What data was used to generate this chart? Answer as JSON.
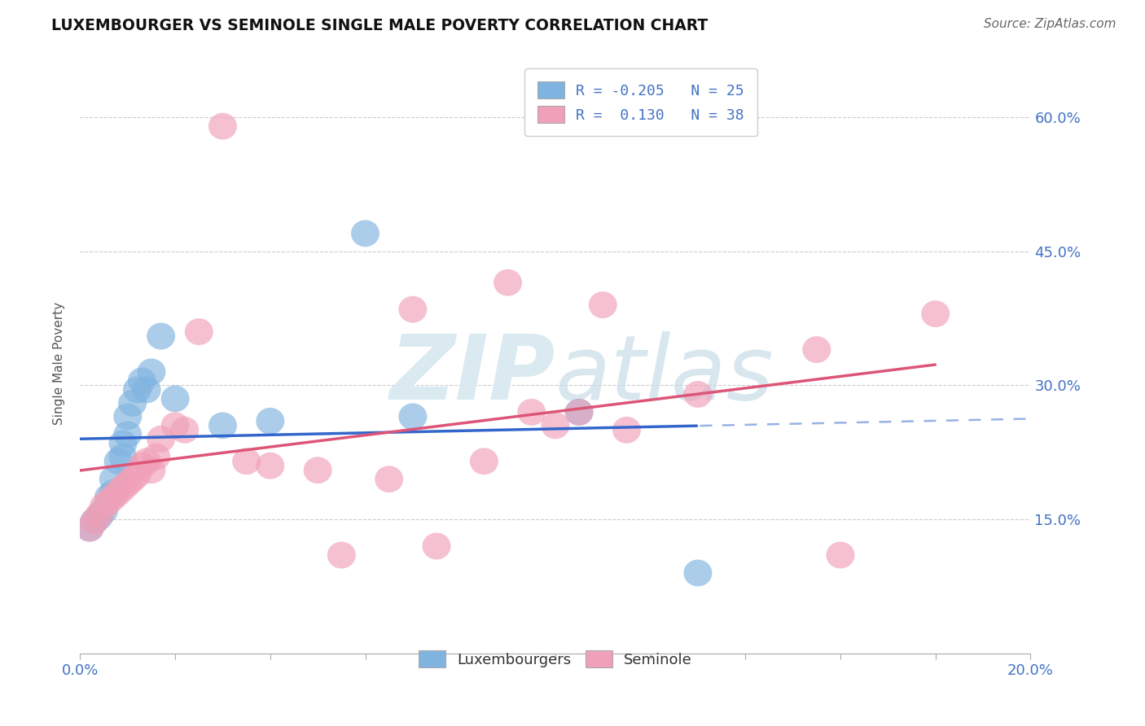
{
  "title": "LUXEMBOURGER VS SEMINOLE SINGLE MALE POVERTY CORRELATION CHART",
  "source": "Source: ZipAtlas.com",
  "ylabel_label": "Single Male Poverty",
  "x_min": 0.0,
  "x_max": 0.2,
  "y_min": 0.0,
  "y_max": 0.65,
  "y_ticks": [
    0.15,
    0.3,
    0.45,
    0.6
  ],
  "y_tick_labels": [
    "15.0%",
    "30.0%",
    "45.0%",
    "60.0%"
  ],
  "grid_color": "#cccccc",
  "background_color": "#ffffff",
  "lux_color": "#7fb3e0",
  "sem_color": "#f0a0b8",
  "lux_line_color": "#3366cc",
  "sem_line_color": "#dd5577",
  "lux_R": -0.205,
  "lux_N": 25,
  "sem_R": 0.13,
  "sem_N": 38,
  "legend_label_lux": "Luxembourgers",
  "legend_label_sem": "Seminole",
  "lux_x": [
    0.002,
    0.003,
    0.004,
    0.005,
    0.006,
    0.007,
    0.007,
    0.008,
    0.009,
    0.009,
    0.01,
    0.01,
    0.011,
    0.012,
    0.013,
    0.014,
    0.015,
    0.017,
    0.02,
    0.03,
    0.04,
    0.06,
    0.07,
    0.105,
    0.13
  ],
  "lux_y": [
    0.14,
    0.148,
    0.153,
    0.16,
    0.175,
    0.18,
    0.195,
    0.215,
    0.22,
    0.235,
    0.245,
    0.265,
    0.28,
    0.295,
    0.305,
    0.295,
    0.315,
    0.355,
    0.285,
    0.255,
    0.26,
    0.47,
    0.265,
    0.27,
    0.09
  ],
  "sem_x": [
    0.002,
    0.003,
    0.004,
    0.005,
    0.006,
    0.007,
    0.008,
    0.009,
    0.01,
    0.011,
    0.012,
    0.013,
    0.014,
    0.015,
    0.016,
    0.017,
    0.02,
    0.022,
    0.025,
    0.03,
    0.035,
    0.04,
    0.05,
    0.055,
    0.065,
    0.07,
    0.075,
    0.085,
    0.09,
    0.095,
    0.1,
    0.105,
    0.11,
    0.115,
    0.13,
    0.155,
    0.16,
    0.18
  ],
  "sem_y": [
    0.14,
    0.148,
    0.155,
    0.165,
    0.17,
    0.175,
    0.18,
    0.185,
    0.19,
    0.195,
    0.2,
    0.21,
    0.215,
    0.205,
    0.22,
    0.24,
    0.255,
    0.25,
    0.36,
    0.59,
    0.215,
    0.21,
    0.205,
    0.11,
    0.195,
    0.385,
    0.12,
    0.215,
    0.415,
    0.27,
    0.255,
    0.27,
    0.39,
    0.25,
    0.29,
    0.34,
    0.11,
    0.38
  ]
}
